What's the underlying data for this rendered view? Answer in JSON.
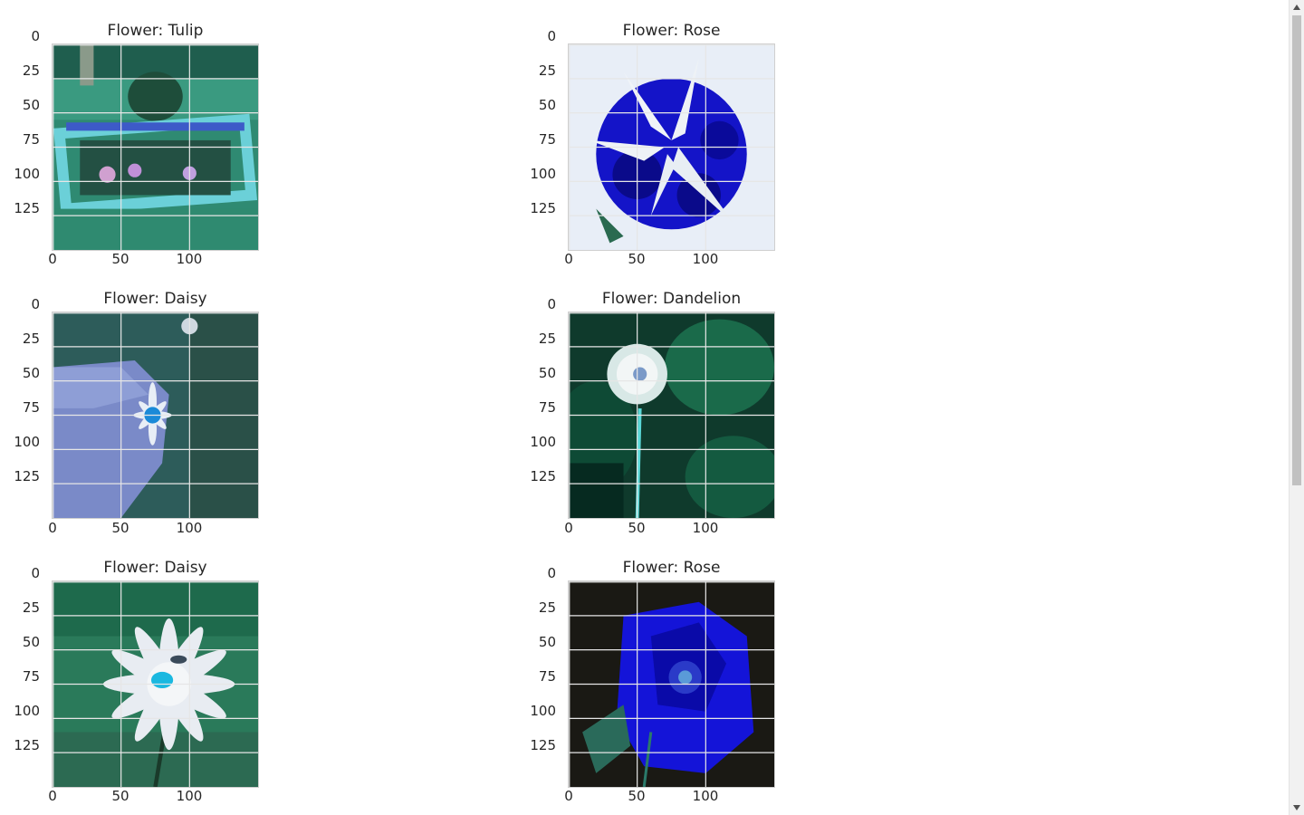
{
  "plots": [
    {
      "title": "Flower: Tulip",
      "scene": "tulip"
    },
    {
      "title": "Flower: Rose",
      "scene": "rose_lily"
    },
    {
      "title": "Flower: Daisy",
      "scene": "daisy_hand"
    },
    {
      "title": "Flower: Dandelion",
      "scene": "dandelion"
    },
    {
      "title": "Flower: Daisy",
      "scene": "daisy_white"
    },
    {
      "title": "Flower: Rose",
      "scene": "rose_blue"
    }
  ],
  "axes": {
    "y_ticks": [
      "0",
      "25",
      "50",
      "75",
      "100",
      "125"
    ],
    "x_ticks": [
      "0",
      "50",
      "100"
    ]
  },
  "colors": {
    "grid": "#e6e6e6",
    "scrollbar_thumb": "#c1c1c1"
  }
}
